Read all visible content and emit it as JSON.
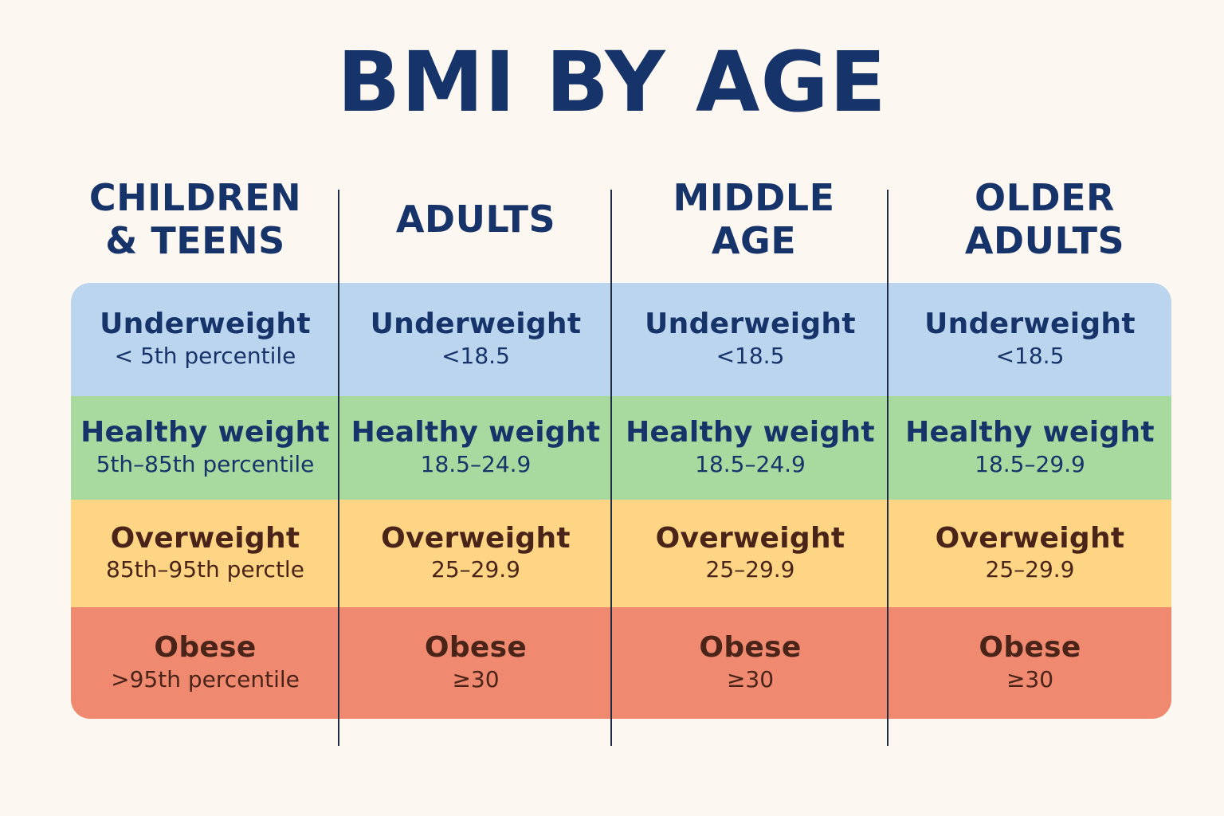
{
  "chart_data": {
    "type": "table",
    "title": "BMI BY AGE",
    "columns": [
      "CHILDREN\n& TEENS",
      "ADULTS",
      "MIDDLE\nAGE",
      "OLDER\nADULTS"
    ],
    "categories": [
      {
        "name": "Underweight",
        "color": "#bcd5ef",
        "text_color": "#17346a"
      },
      {
        "name": "Healthy weight",
        "color": "#a8d99f",
        "text_color": "#17346a"
      },
      {
        "name": "Overweight",
        "color": "#fdd584",
        "text_color": "#4a2418"
      },
      {
        "name": "Obese",
        "color": "#ef8970",
        "text_color": "#4a2418"
      }
    ],
    "rows": [
      [
        {
          "label": "Underweight",
          "range": "< 5th percentile"
        },
        {
          "label": "Underweight",
          "range": "<18.5"
        },
        {
          "label": "Underweight",
          "range": "<18.5"
        },
        {
          "label": "Underweight",
          "range": "<18.5"
        }
      ],
      [
        {
          "label": "Healthy weight",
          "range": "5th–85th percentile"
        },
        {
          "label": "Healthy weight",
          "range": "18.5–24.9"
        },
        {
          "label": "Healthy weight",
          "range": "18.5–24.9"
        },
        {
          "label": "Healthy weight",
          "range": "18.5–29.9"
        }
      ],
      [
        {
          "label": "Overweight",
          "range": "85th–95th perctle"
        },
        {
          "label": "Overweight",
          "range": "25–29.9"
        },
        {
          "label": "Overweight",
          "range": "25–29.9"
        },
        {
          "label": "Overweight",
          "range": "25–29.9"
        }
      ],
      [
        {
          "label": "Obese",
          "range": ">95th percentile"
        },
        {
          "label": "Obese",
          "range": "≥30"
        },
        {
          "label": "Obese",
          "range": "≥30"
        },
        {
          "label": "Obese",
          "range": "≥30"
        }
      ]
    ]
  },
  "colors": {
    "background": "#fcf8f1",
    "title": "#17346a",
    "divider": "#1f2c44"
  }
}
